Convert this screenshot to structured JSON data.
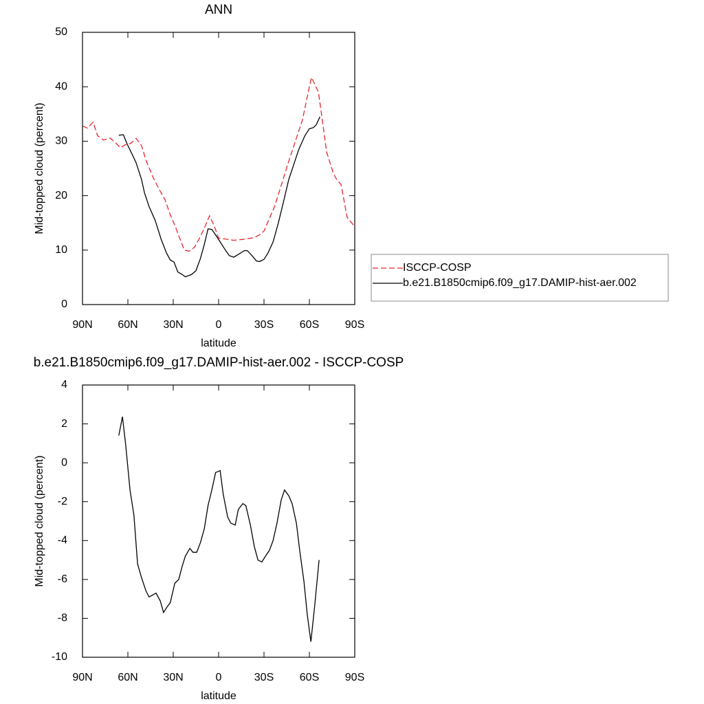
{
  "chart_data": [
    {
      "type": "line",
      "title": "ANN",
      "xlabel": "latitude",
      "ylabel": "Mid-topped cloud (percent)",
      "xlim": [
        90,
        -90
      ],
      "xticks": [
        {
          "value": 90,
          "label": "90N"
        },
        {
          "value": 60,
          "label": "60N"
        },
        {
          "value": 30,
          "label": "30N"
        },
        0,
        {
          "value": -30,
          "label": "30S"
        },
        {
          "value": -60,
          "label": "60S"
        },
        {
          "value": -90,
          "label": "90S"
        }
      ],
      "ylim": [
        0,
        50
      ],
      "yticks": [
        0,
        10,
        20,
        30,
        40,
        50
      ],
      "legend": "right",
      "series": [
        {
          "name": "ISCCP-COSP",
          "color": "#e8222a",
          "line_style": "dashed",
          "x": [
            90,
            86.8,
            83,
            80,
            76,
            72,
            68,
            65,
            62,
            58,
            54.5,
            51,
            48,
            43.6,
            39,
            35.5,
            32,
            28.6,
            25.5,
            22.7,
            19.5,
            16,
            13,
            9.5,
            6,
            3,
            0,
            -5.5,
            -10,
            -17,
            -23.6,
            -27,
            -30,
            -37,
            -46,
            -55.5,
            -60,
            -61.4,
            -66,
            -69,
            -71.4,
            -76,
            -78,
            -81,
            -85,
            -90
          ],
          "values": [
            32.8,
            32.4,
            33.5,
            31,
            30.2,
            30.6,
            29.7,
            28.8,
            29.3,
            29.6,
            30.5,
            29.2,
            26.5,
            23.5,
            21,
            19.3,
            16.5,
            14.3,
            12,
            10,
            9.8,
            10.5,
            12,
            14,
            16.3,
            14.5,
            12.2,
            12,
            11.8,
            12,
            12.3,
            12.8,
            13.5,
            18,
            26,
            34,
            40,
            41.7,
            39,
            33,
            28,
            24,
            23,
            22,
            16,
            14.3
          ]
        },
        {
          "name": "b.e21.B1850cmip6.f09_g17.DAMIP-hist-aer.002",
          "color": "#000000",
          "line_style": "solid",
          "x": [
            66,
            63,
            60.5,
            57,
            54.5,
            51,
            49,
            46,
            42,
            38,
            34.5,
            32,
            29.5,
            27,
            24,
            22,
            18,
            15,
            12,
            9.5,
            7,
            4.5,
            2,
            -1,
            -4.5,
            -7,
            -10,
            -13,
            -17,
            -19,
            -22,
            -25,
            -27,
            -30,
            -32.7,
            -36,
            -39.5,
            -43,
            -46.4,
            -50,
            -53,
            -57,
            -60,
            -62.7,
            -64.5,
            -67
          ],
          "values": [
            31.1,
            31.2,
            29.5,
            27.5,
            26,
            23,
            20.5,
            18,
            15.5,
            12,
            9.5,
            8.2,
            7.8,
            6,
            5.5,
            5.1,
            5.5,
            6.2,
            8.5,
            11,
            13.9,
            13.8,
            12.8,
            11.5,
            10,
            9,
            8.7,
            9.2,
            9.9,
            9.9,
            9,
            8,
            7.9,
            8.3,
            9.5,
            11.5,
            15,
            19,
            23,
            26,
            28.5,
            31,
            32.3,
            32.5,
            33,
            34.5
          ]
        }
      ]
    },
    {
      "type": "line",
      "title": "b.e21.B1850cmip6.f09_g17.DAMIP-hist-aer.002 - ISCCP-COSP",
      "xlabel": "latitude",
      "ylabel": "Mid-topped cloud (percent)",
      "xlim": [
        90,
        -90
      ],
      "xticks": [
        {
          "value": 90,
          "label": "90N"
        },
        {
          "value": 60,
          "label": "60N"
        },
        {
          "value": 30,
          "label": "30N"
        },
        0,
        {
          "value": -30,
          "label": "30S"
        },
        {
          "value": -60,
          "label": "60S"
        },
        {
          "value": -90,
          "label": "90S"
        }
      ],
      "ylim": [
        -10,
        4
      ],
      "yticks": [
        -10,
        -8,
        -6,
        -4,
        -2,
        0,
        2,
        4
      ],
      "series": [
        {
          "color": "#000000",
          "line_style": "solid",
          "x": [
            66,
            63.6,
            61.4,
            58.6,
            56,
            53.6,
            51,
            48,
            46,
            43.6,
            41.4,
            38.6,
            36.4,
            34,
            32,
            29,
            26.4,
            24,
            22,
            19,
            17,
            14.5,
            12,
            9.5,
            7,
            4.5,
            2,
            -1,
            -3,
            -6,
            -8,
            -11,
            -13,
            -16,
            -18,
            -21,
            -23.6,
            -26,
            -28.6,
            -31,
            -33.6,
            -36,
            -38.6,
            -41.4,
            -43.6,
            -46.4,
            -48.6,
            -51.4,
            -53.6,
            -56.4,
            -58.6,
            -61,
            -63.6,
            -66.4
          ],
          "values": [
            1.4,
            2.37,
            0.9,
            -1.4,
            -2.7,
            -5.2,
            -5.9,
            -6.6,
            -6.9,
            -6.8,
            -6.7,
            -7.1,
            -7.7,
            -7.4,
            -7.2,
            -6.2,
            -6,
            -5.3,
            -4.8,
            -4.4,
            -4.6,
            -4.6,
            -4.1,
            -3.4,
            -2.2,
            -1.4,
            -0.5,
            -0.4,
            -1.6,
            -2.8,
            -3.1,
            -3.2,
            -2.4,
            -2.1,
            -2.2,
            -3.2,
            -4.3,
            -5,
            -5.1,
            -4.8,
            -4.5,
            -4,
            -3.1,
            -1.9,
            -1.4,
            -1.7,
            -2.1,
            -3.1,
            -4.5,
            -6.1,
            -7.8,
            -9.2,
            -7.3,
            -5
          ]
        }
      ]
    }
  ]
}
